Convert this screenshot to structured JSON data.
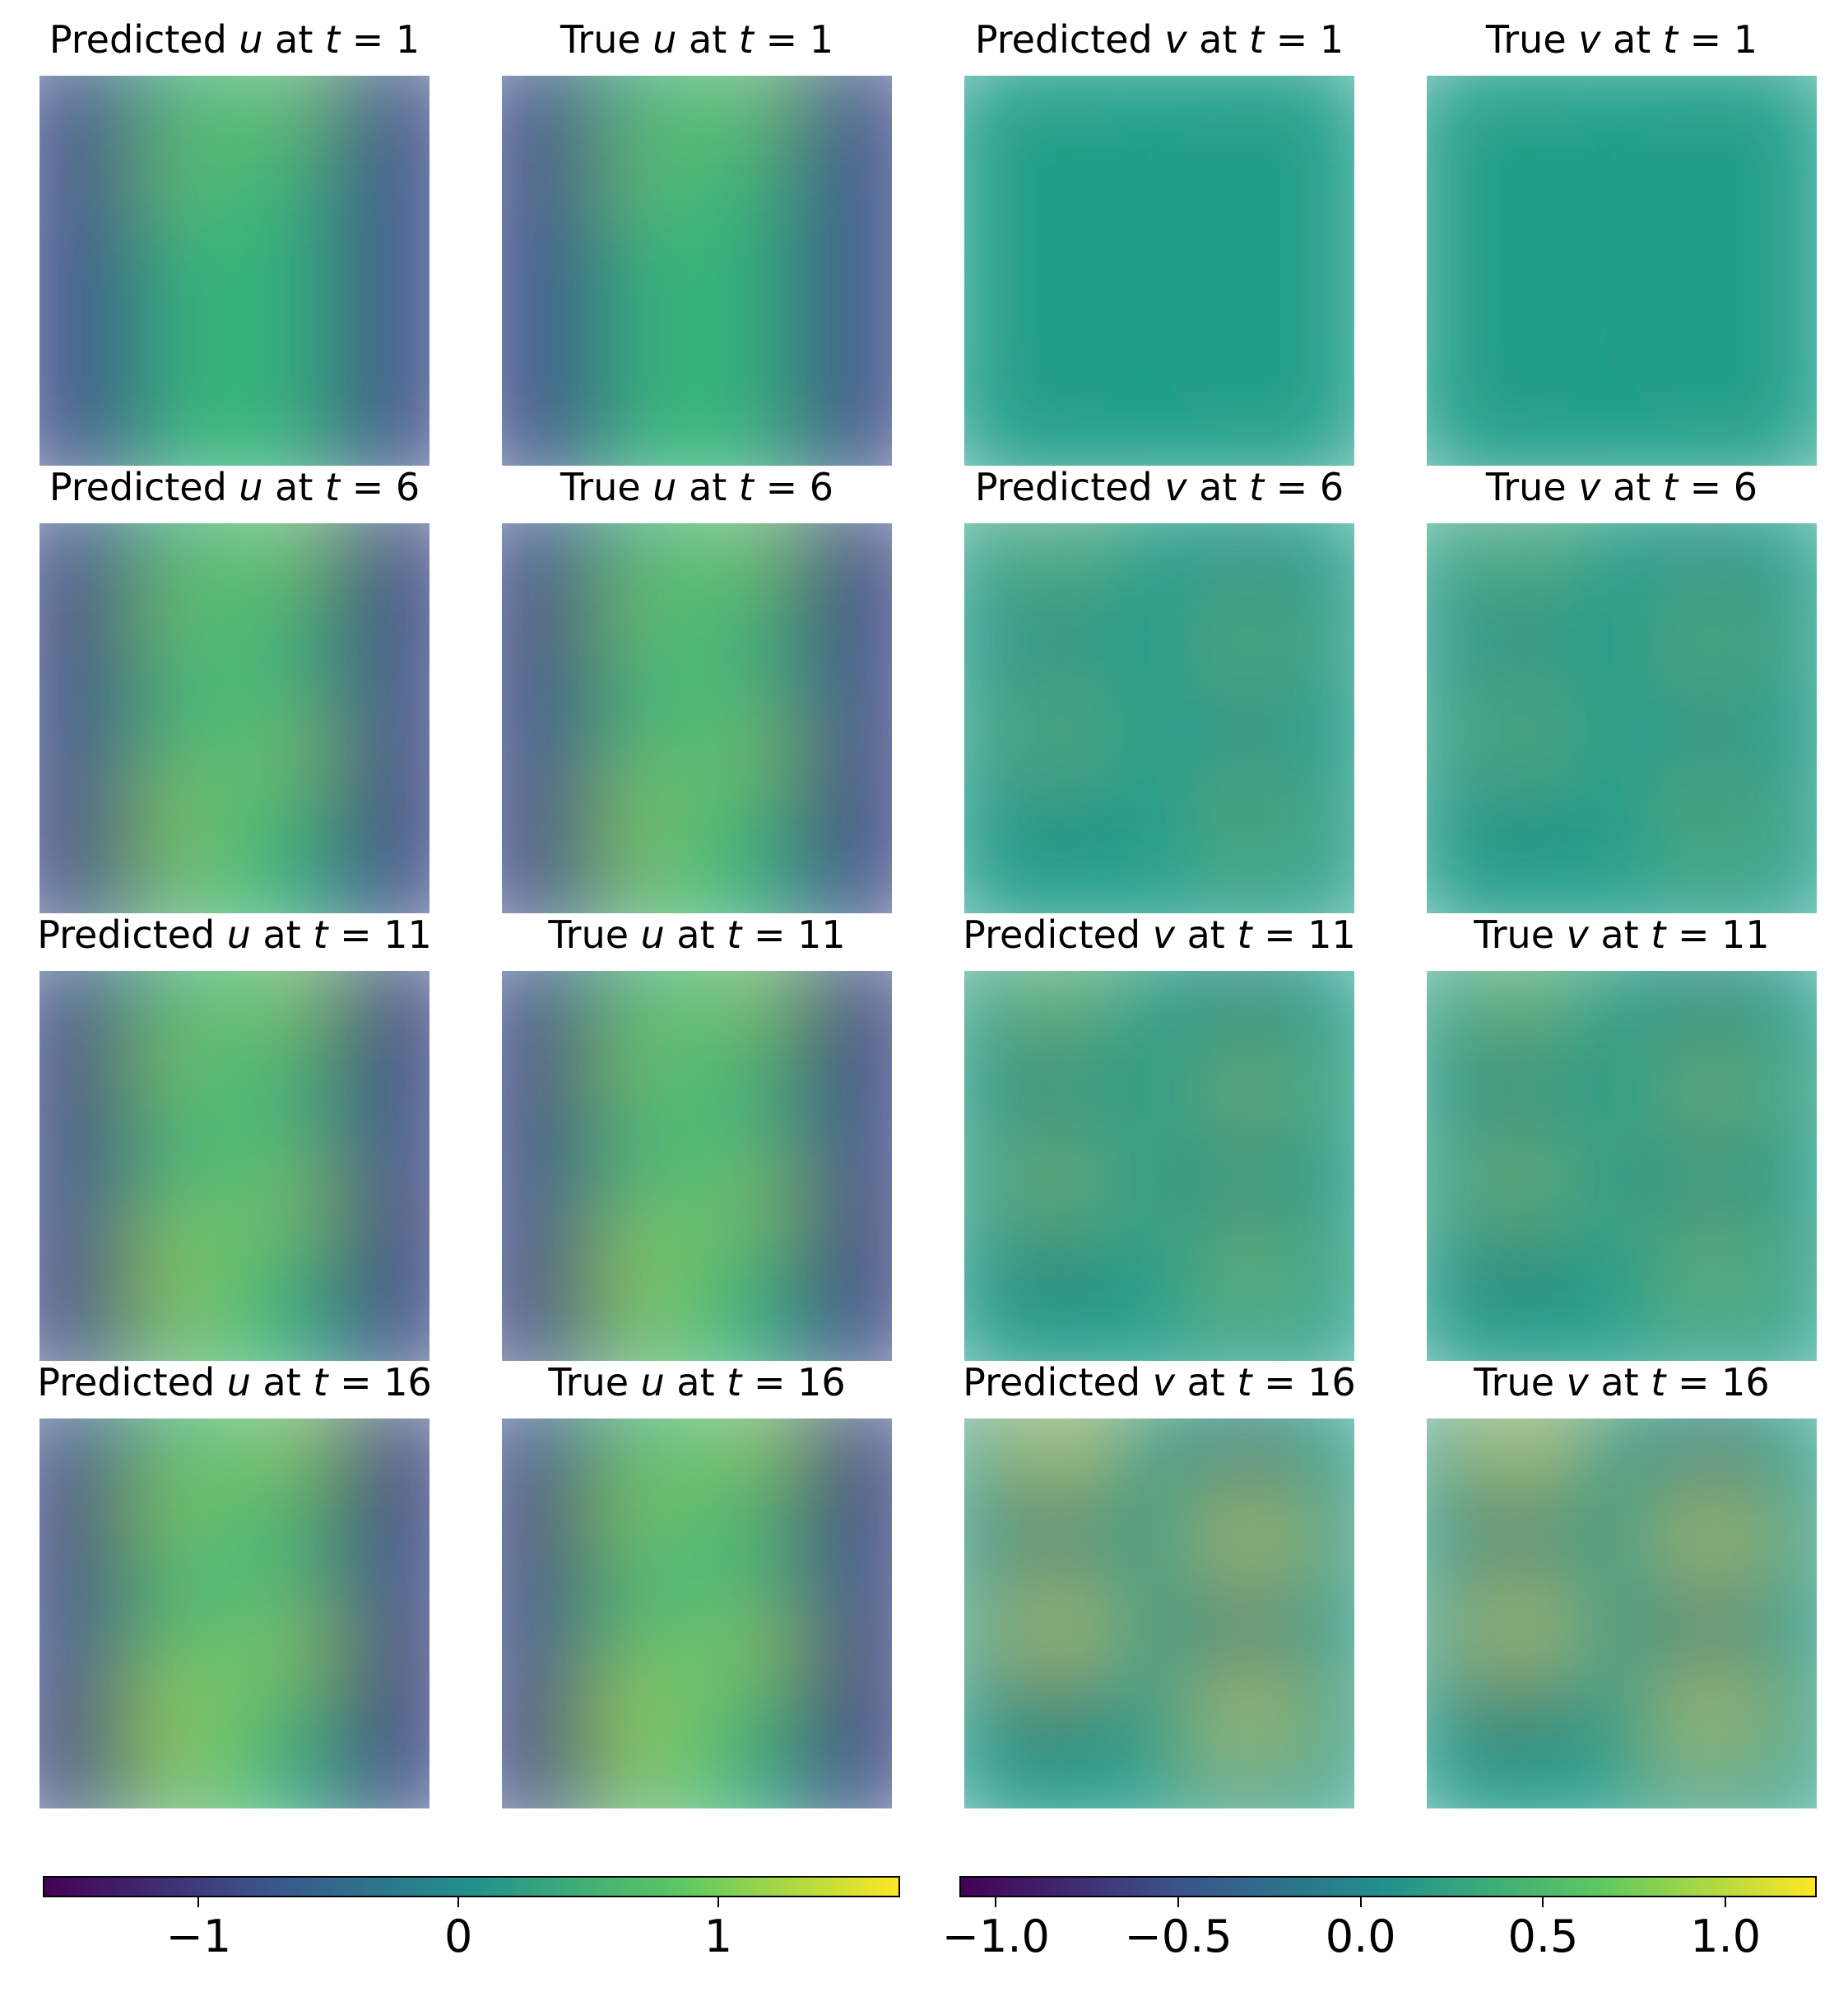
{
  "chart_data": {
    "type": "heatmap",
    "colormap": "viridis",
    "panels": [
      {
        "variable": "u",
        "kind": "Predicted",
        "t": 1,
        "title": [
          "Predicted ",
          "u",
          " at ",
          "t",
          " = 1"
        ]
      },
      {
        "variable": "u",
        "kind": "True",
        "t": 1,
        "title": [
          "True ",
          "u",
          " at ",
          "t",
          " = 1"
        ]
      },
      {
        "variable": "v",
        "kind": "Predicted",
        "t": 1,
        "title": [
          "Predicted ",
          "v",
          " at ",
          "t",
          " = 1"
        ]
      },
      {
        "variable": "v",
        "kind": "True",
        "t": 1,
        "title": [
          "True ",
          "v",
          " at ",
          "t",
          " = 1"
        ]
      },
      {
        "variable": "u",
        "kind": "Predicted",
        "t": 6,
        "title": [
          "Predicted ",
          "u",
          " at ",
          "t",
          " = 6"
        ]
      },
      {
        "variable": "u",
        "kind": "True",
        "t": 6,
        "title": [
          "True ",
          "u",
          " at ",
          "t",
          " = 6"
        ]
      },
      {
        "variable": "v",
        "kind": "Predicted",
        "t": 6,
        "title": [
          "Predicted ",
          "v",
          " at ",
          "t",
          " = 6"
        ]
      },
      {
        "variable": "v",
        "kind": "True",
        "t": 6,
        "title": [
          "True ",
          "v",
          " at ",
          "t",
          " = 6"
        ]
      },
      {
        "variable": "u",
        "kind": "Predicted",
        "t": 11,
        "title": [
          "Predicted ",
          "u",
          " at ",
          "t",
          " = 11"
        ]
      },
      {
        "variable": "u",
        "kind": "True",
        "t": 11,
        "title": [
          "True ",
          "u",
          " at ",
          "t",
          " = 11"
        ]
      },
      {
        "variable": "v",
        "kind": "Predicted",
        "t": 11,
        "title": [
          "Predicted ",
          "v",
          " at ",
          "t",
          " = 11"
        ]
      },
      {
        "variable": "v",
        "kind": "True",
        "t": 11,
        "title": [
          "True ",
          "v",
          " at ",
          "t",
          " = 11"
        ]
      },
      {
        "variable": "u",
        "kind": "Predicted",
        "t": 16,
        "title": [
          "Predicted ",
          "u",
          " at ",
          "t",
          " = 16"
        ]
      },
      {
        "variable": "u",
        "kind": "True",
        "t": 16,
        "title": [
          "True ",
          "u",
          " at ",
          "t",
          " = 16"
        ]
      },
      {
        "variable": "v",
        "kind": "Predicted",
        "t": 16,
        "title": [
          "Predicted ",
          "v",
          " at ",
          "t",
          " = 16"
        ]
      },
      {
        "variable": "v",
        "kind": "True",
        "t": 16,
        "title": [
          "True ",
          "v",
          " at ",
          "t",
          " = 16"
        ]
      }
    ],
    "colorbars": [
      {
        "variable": "u",
        "range": [
          -1.6,
          1.7
        ],
        "ticks": [
          -1,
          0,
          1
        ],
        "tick_labels": [
          "−1",
          "0",
          "1"
        ]
      },
      {
        "variable": "v",
        "range": [
          -1.1,
          1.25
        ],
        "ticks": [
          -1.0,
          -0.5,
          0.0,
          0.5,
          1.0
        ],
        "tick_labels": [
          "−1.0",
          "−0.5",
          "0.0",
          "0.5",
          "1.0"
        ]
      }
    ],
    "grid": false,
    "axes_visible": false
  },
  "colors": {
    "viridis_low": "#440154",
    "viridis_mid": "#21918c",
    "viridis_high": "#fde725"
  }
}
